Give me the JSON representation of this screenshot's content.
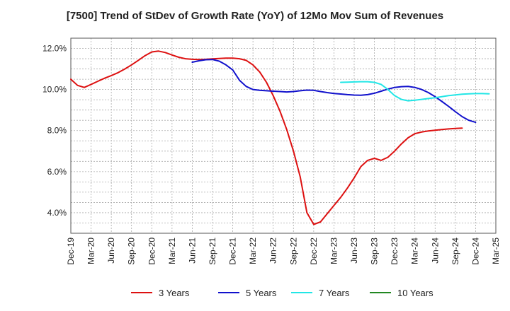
{
  "chart_data": {
    "type": "line",
    "title": "[7500]  Trend of StDev of Growth Rate (YoY) of 12Mo Mov Sum of Revenues",
    "xlabel": "",
    "ylabel": "",
    "ylim": [
      3.0,
      12.5
    ],
    "y_ticks": [
      4.0,
      6.0,
      8.0,
      10.0,
      12.0
    ],
    "y_tick_labels": [
      "4.0%",
      "6.0%",
      "8.0%",
      "10.0%",
      "12.0%"
    ],
    "x_tick_labels": [
      "Dec-19",
      "Mar-20",
      "Jun-20",
      "Sep-20",
      "Dec-20",
      "Mar-21",
      "Jun-21",
      "Sep-21",
      "Dec-21",
      "Mar-22",
      "Jun-22",
      "Sep-22",
      "Dec-22",
      "Mar-23",
      "Jun-23",
      "Sep-23",
      "Dec-23",
      "Mar-24",
      "Jun-24",
      "Sep-24",
      "Dec-24",
      "Mar-25"
    ],
    "grid": true,
    "legend_position": "bottom",
    "series": [
      {
        "name": "3 Years",
        "color": "#dd1111",
        "points": [
          [
            0,
            10.5
          ],
          [
            1,
            10.2
          ],
          [
            2,
            10.1
          ],
          [
            3,
            10.25
          ],
          [
            4,
            10.4
          ],
          [
            5,
            10.55
          ],
          [
            6,
            10.68
          ],
          [
            7,
            10.82
          ],
          [
            8,
            11.0
          ],
          [
            9,
            11.2
          ],
          [
            10,
            11.42
          ],
          [
            11,
            11.65
          ],
          [
            12,
            11.83
          ],
          [
            13,
            11.87
          ],
          [
            14,
            11.8
          ],
          [
            15,
            11.68
          ],
          [
            16,
            11.57
          ],
          [
            17,
            11.5
          ],
          [
            18,
            11.47
          ],
          [
            19,
            11.46
          ],
          [
            20,
            11.47
          ],
          [
            21,
            11.49
          ],
          [
            22,
            11.51
          ],
          [
            23,
            11.53
          ],
          [
            24,
            11.53
          ],
          [
            25,
            11.5
          ],
          [
            26,
            11.42
          ],
          [
            27,
            11.2
          ],
          [
            28,
            10.85
          ],
          [
            29,
            10.35
          ],
          [
            30,
            9.7
          ],
          [
            31,
            8.95
          ],
          [
            32,
            8.05
          ],
          [
            33,
            7.0
          ],
          [
            34,
            5.75
          ],
          [
            35,
            4.0
          ],
          [
            36,
            3.43
          ],
          [
            37,
            3.55
          ],
          [
            38,
            3.95
          ],
          [
            39,
            4.35
          ],
          [
            40,
            4.75
          ],
          [
            41,
            5.2
          ],
          [
            42,
            5.7
          ],
          [
            43,
            6.25
          ],
          [
            44,
            6.55
          ],
          [
            45,
            6.65
          ],
          [
            46,
            6.55
          ],
          [
            47,
            6.7
          ],
          [
            48,
            7.0
          ],
          [
            49,
            7.35
          ],
          [
            50,
            7.65
          ],
          [
            51,
            7.85
          ],
          [
            52,
            7.93
          ],
          [
            53,
            7.98
          ],
          [
            54,
            8.02
          ],
          [
            55,
            8.05
          ],
          [
            56,
            8.08
          ],
          [
            57,
            8.1
          ],
          [
            58,
            8.12
          ]
        ]
      },
      {
        "name": "5 Years",
        "color": "#1111cc",
        "points": [
          [
            18,
            11.33
          ],
          [
            19,
            11.4
          ],
          [
            20,
            11.45
          ],
          [
            21,
            11.46
          ],
          [
            22,
            11.38
          ],
          [
            23,
            11.2
          ],
          [
            24,
            10.95
          ],
          [
            25,
            10.45
          ],
          [
            26,
            10.15
          ],
          [
            27,
            10.0
          ],
          [
            28,
            9.96
          ],
          [
            29,
            9.94
          ],
          [
            30,
            9.92
          ],
          [
            31,
            9.9
          ],
          [
            32,
            9.88
          ],
          [
            33,
            9.9
          ],
          [
            34,
            9.94
          ],
          [
            35,
            9.97
          ],
          [
            36,
            9.96
          ],
          [
            37,
            9.9
          ],
          [
            38,
            9.85
          ],
          [
            39,
            9.81
          ],
          [
            40,
            9.78
          ],
          [
            41,
            9.75
          ],
          [
            42,
            9.73
          ],
          [
            43,
            9.72
          ],
          [
            44,
            9.75
          ],
          [
            45,
            9.82
          ],
          [
            46,
            9.92
          ],
          [
            47,
            10.02
          ],
          [
            48,
            10.1
          ],
          [
            49,
            10.14
          ],
          [
            50,
            10.15
          ],
          [
            51,
            10.1
          ],
          [
            52,
            10.0
          ],
          [
            53,
            9.85
          ],
          [
            54,
            9.65
          ],
          [
            55,
            9.42
          ],
          [
            56,
            9.18
          ],
          [
            57,
            8.92
          ],
          [
            58,
            8.68
          ],
          [
            59,
            8.5
          ],
          [
            60,
            8.4
          ]
        ]
      },
      {
        "name": "7 Years",
        "color": "#22e6e6",
        "points": [
          [
            40,
            10.35
          ],
          [
            41,
            10.36
          ],
          [
            42,
            10.37
          ],
          [
            43,
            10.38
          ],
          [
            44,
            10.38
          ],
          [
            45,
            10.35
          ],
          [
            46,
            10.25
          ],
          [
            47,
            10.0
          ],
          [
            48,
            9.7
          ],
          [
            49,
            9.52
          ],
          [
            50,
            9.45
          ],
          [
            51,
            9.48
          ],
          [
            52,
            9.52
          ],
          [
            53,
            9.56
          ],
          [
            54,
            9.6
          ],
          [
            55,
            9.65
          ],
          [
            56,
            9.7
          ],
          [
            57,
            9.74
          ],
          [
            58,
            9.77
          ],
          [
            59,
            9.79
          ],
          [
            60,
            9.8
          ],
          [
            61,
            9.8
          ],
          [
            62,
            9.79
          ]
        ]
      },
      {
        "name": "10 Years",
        "color": "#228822",
        "points": []
      }
    ]
  }
}
